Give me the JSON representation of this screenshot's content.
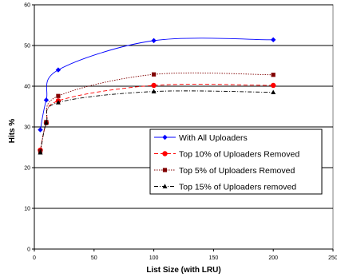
{
  "chart_data": {
    "type": "line",
    "xlabel": "List Size (with LRU)",
    "ylabel": "Hits %",
    "xlim": [
      0,
      250
    ],
    "ylim": [
      0,
      60
    ],
    "x_ticks": [
      "0",
      "50",
      "100",
      "150",
      "200",
      "250"
    ],
    "y_ticks": [
      "0",
      "10",
      "20",
      "30",
      "40",
      "50",
      "60"
    ],
    "grid": "horizontal",
    "legend_position": "lower-right",
    "series": [
      {
        "name": "With All Uploaders",
        "x": [
          5,
          10,
          20,
          100,
          200
        ],
        "values": [
          29.3,
          36.6,
          44.0,
          51.2,
          51.4
        ],
        "color": "#0000ff",
        "line_style": "solid",
        "marker": "diamond"
      },
      {
        "name": "Top 10% of Uploaders Removed",
        "x": [
          5,
          10,
          20,
          100,
          200
        ],
        "values": [
          24.3,
          31.0,
          36.4,
          40.2,
          40.2
        ],
        "color": "#ff0000",
        "line_style": "dashed",
        "marker": "circle"
      },
      {
        "name": "Top 5% of Uploaders Removed",
        "x": [
          5,
          10,
          20,
          100,
          200
        ],
        "values": [
          24.0,
          31.2,
          37.6,
          42.9,
          42.8
        ],
        "color": "#800000",
        "line_style": "dotted",
        "marker": "square"
      },
      {
        "name": "Top 15% of Uploaders removed",
        "x": [
          5,
          10,
          20,
          100,
          200
        ],
        "values": [
          23.7,
          31.0,
          36.0,
          38.7,
          38.5
        ],
        "color": "#000000",
        "line_style": "dashdot",
        "marker": "triangle"
      }
    ]
  }
}
